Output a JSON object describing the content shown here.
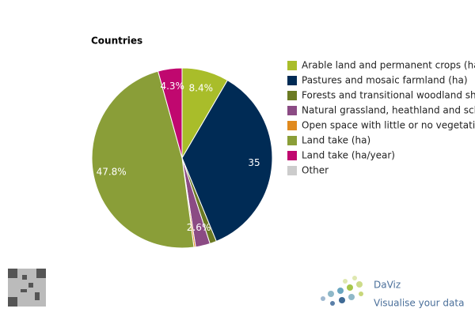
{
  "chart_data": {
    "type": "pie",
    "title": "Countries",
    "categories": [
      "Arable land and permanent crops (ha)",
      "Pastures and mosaic farmland (ha)",
      "Forests and transitional woodland shrub (ha)",
      "Natural grassland, heathland and sclerophyllous vegetation (ha)",
      "Open space with little or no vegetation (ha)",
      "Land take (ha)",
      "Land take (ha/year)",
      "Other"
    ],
    "values": [
      8.4,
      35.4,
      1.2,
      2.6,
      0.3,
      47.8,
      4.3,
      0
    ],
    "value_labels": [
      "8.4%",
      "35",
      null,
      "2.6%",
      null,
      "47.8%",
      "4.3%",
      null
    ],
    "colors": [
      "#a9bd2a",
      "#002b55",
      "#6b7a23",
      "#8b4b84",
      "#e08a1e",
      "#8a9e38",
      "#c0086f",
      "#cccccc"
    ],
    "legend": "right"
  },
  "branding": {
    "name": "DaViz",
    "tagline": "Visualise your data"
  }
}
